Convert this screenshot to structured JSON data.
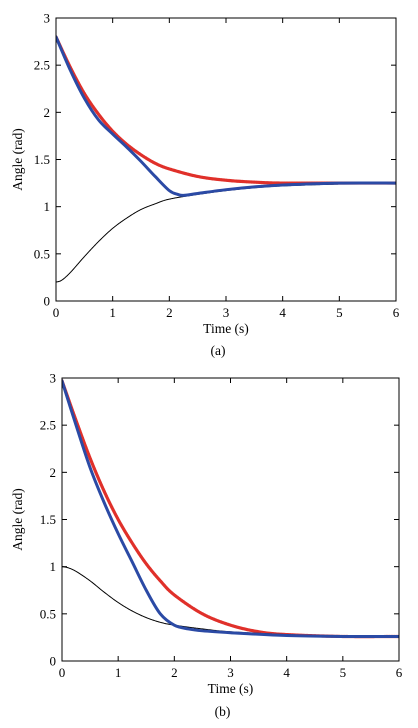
{
  "chart_data": [
    {
      "type": "line",
      "caption": "(a)",
      "xlabel": "Time (s)",
      "ylabel": "Angle (rad)",
      "xlim": [
        0,
        6
      ],
      "ylim": [
        0,
        3
      ],
      "xticks": [
        0,
        1,
        2,
        3,
        4,
        5,
        6
      ],
      "yticks": [
        0,
        0.5,
        1,
        1.5,
        2,
        2.5,
        3
      ],
      "ytick_labels": [
        "0",
        "0.5",
        "1",
        "1.5",
        "2",
        "2.5",
        "3"
      ],
      "grid": false,
      "series": [
        {
          "color": "#e0302a",
          "style": "thick-red",
          "x": [
            0,
            0.25,
            0.5,
            0.75,
            1.0,
            1.25,
            1.5,
            1.75,
            2.0,
            2.5,
            3.0,
            3.5,
            4.0,
            5.0,
            6.0
          ],
          "y": [
            2.8,
            2.48,
            2.2,
            1.98,
            1.8,
            1.66,
            1.55,
            1.46,
            1.4,
            1.32,
            1.28,
            1.26,
            1.25,
            1.25,
            1.25
          ]
        },
        {
          "color": "#2b4aa5",
          "style": "thick-blue",
          "x": [
            0,
            0.25,
            0.5,
            0.75,
            1.0,
            1.25,
            1.5,
            1.75,
            2.0,
            2.15,
            2.25,
            2.5,
            3.0,
            3.5,
            4.0,
            5.0,
            6.0
          ],
          "y": [
            2.8,
            2.45,
            2.15,
            1.92,
            1.77,
            1.63,
            1.48,
            1.32,
            1.17,
            1.13,
            1.12,
            1.14,
            1.18,
            1.21,
            1.23,
            1.25,
            1.25
          ]
        },
        {
          "color": "#000000",
          "style": "thin-black",
          "x": [
            0,
            0.1,
            0.25,
            0.5,
            0.75,
            1.0,
            1.25,
            1.5,
            1.75,
            2.0,
            2.5,
            3.0,
            3.5,
            4.0,
            5.0,
            6.0
          ],
          "y": [
            0.2,
            0.22,
            0.3,
            0.47,
            0.63,
            0.77,
            0.88,
            0.97,
            1.03,
            1.08,
            1.13,
            1.17,
            1.2,
            1.22,
            1.24,
            1.25
          ]
        }
      ]
    },
    {
      "type": "line",
      "caption": "(b)",
      "xlabel": "Time (s)",
      "ylabel": "Angle (rad)",
      "xlim": [
        0,
        6
      ],
      "ylim": [
        0,
        3
      ],
      "xticks": [
        0,
        1,
        2,
        3,
        4,
        5,
        6
      ],
      "yticks": [
        0,
        0.5,
        1,
        1.5,
        2,
        2.5,
        3
      ],
      "ytick_labels": [
        "0",
        "0.5",
        "1",
        "1.5",
        "2",
        "2.5",
        "3"
      ],
      "grid": false,
      "series": [
        {
          "color": "#e0302a",
          "style": "thick-red",
          "x": [
            0,
            0.25,
            0.5,
            0.75,
            1.0,
            1.25,
            1.5,
            1.75,
            2.0,
            2.5,
            3.0,
            3.5,
            4.0,
            5.0,
            6.0
          ],
          "y": [
            2.97,
            2.55,
            2.15,
            1.8,
            1.5,
            1.25,
            1.03,
            0.85,
            0.7,
            0.5,
            0.38,
            0.31,
            0.28,
            0.26,
            0.26
          ]
        },
        {
          "color": "#2b4aa5",
          "style": "thick-blue",
          "x": [
            0,
            0.25,
            0.5,
            0.75,
            1.0,
            1.25,
            1.5,
            1.75,
            2.0,
            2.25,
            2.5,
            3.0,
            4.0,
            5.0,
            6.0
          ],
          "y": [
            2.97,
            2.5,
            2.05,
            1.68,
            1.35,
            1.05,
            0.75,
            0.5,
            0.38,
            0.34,
            0.32,
            0.3,
            0.27,
            0.26,
            0.26
          ]
        },
        {
          "color": "#000000",
          "style": "thin-black",
          "x": [
            0,
            0.1,
            0.25,
            0.5,
            0.75,
            1.0,
            1.25,
            1.5,
            1.75,
            2.0,
            2.5,
            3.0,
            4.0,
            5.0,
            6.0
          ],
          "y": [
            1.0,
            0.99,
            0.95,
            0.85,
            0.73,
            0.62,
            0.53,
            0.46,
            0.41,
            0.38,
            0.34,
            0.31,
            0.28,
            0.26,
            0.26
          ]
        }
      ]
    }
  ]
}
